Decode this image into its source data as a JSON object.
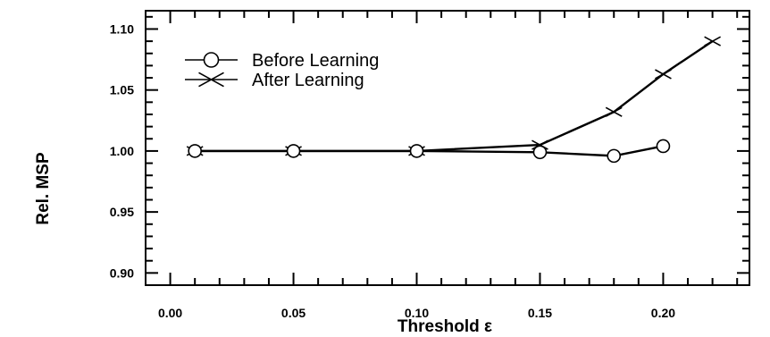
{
  "chart_data": {
    "type": "line",
    "xlabel": "Threshold ε",
    "ylabel": "Rel. MSP",
    "xlim": [
      -0.01,
      0.235
    ],
    "ylim": [
      0.89,
      1.115
    ],
    "xticks": [
      0.0,
      0.05,
      0.1,
      0.15,
      0.2
    ],
    "xtick_labels": [
      "0.00",
      "0.05",
      "0.10",
      "0.15",
      "0.20"
    ],
    "yticks": [
      0.9,
      0.95,
      1.0,
      1.05,
      1.1
    ],
    "ytick_labels": [
      "0.90",
      "0.95",
      "1.00",
      "1.05",
      "1.10"
    ],
    "grid": false,
    "legend_position": "top-left",
    "series": [
      {
        "name": "Before Learning",
        "marker": "circle",
        "color": "#000000",
        "x": [
          0.01,
          0.05,
          0.1,
          0.15,
          0.18,
          0.2
        ],
        "y": [
          1.0,
          1.0,
          1.0,
          0.999,
          0.996,
          1.004
        ]
      },
      {
        "name": "After Learning",
        "marker": "x",
        "color": "#000000",
        "x": [
          0.01,
          0.05,
          0.1,
          0.15,
          0.18,
          0.2,
          0.22
        ],
        "y": [
          1.0,
          1.0,
          1.0,
          1.005,
          1.032,
          1.063,
          1.09
        ]
      }
    ]
  }
}
